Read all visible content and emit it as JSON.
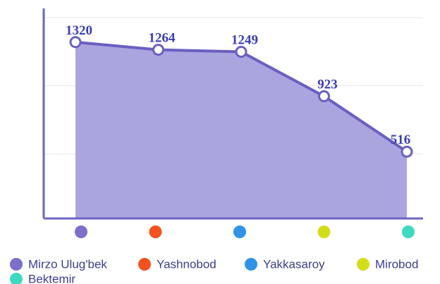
{
  "chart_data": {
    "type": "area",
    "categories": [
      "Mirzo Ulug'bek",
      "Yashnobod",
      "Yakkasaroy",
      "Mirobod",
      "Bektemir"
    ],
    "category_colors": [
      "#7b6fc9",
      "#f4511e",
      "#2f94e8",
      "#d4dc1c",
      "#3dd9c1"
    ],
    "values": [
      1320,
      1264,
      1249,
      923,
      516
    ],
    "color": "#6a5fc1",
    "fill": "#aaa5de",
    "ylim": [
      0,
      1500
    ],
    "yticks": [
      500,
      1000,
      1500
    ],
    "grid": true
  }
}
